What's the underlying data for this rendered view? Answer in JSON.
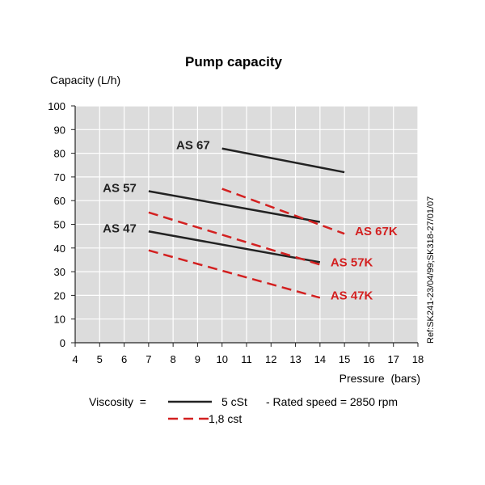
{
  "chart_data": {
    "type": "line",
    "title": "Pump capacity",
    "ylabel": "Capacity (L/h)",
    "xlabel": "Pressure  (bars)",
    "xlim": [
      4,
      18
    ],
    "ylim": [
      0,
      100
    ],
    "x_ticks": [
      4,
      5,
      6,
      7,
      8,
      9,
      10,
      11,
      12,
      13,
      14,
      15,
      16,
      17,
      18
    ],
    "y_ticks": [
      0,
      10,
      20,
      30,
      40,
      50,
      60,
      70,
      80,
      90,
      100
    ],
    "grid": true,
    "series": [
      {
        "name": "AS 67",
        "viscosity": "5 cSt",
        "color": "#222222",
        "dashed": false,
        "label_side": "left",
        "x": [
          10,
          15
        ],
        "y": [
          82,
          72
        ]
      },
      {
        "name": "AS 57",
        "viscosity": "5 cSt",
        "color": "#222222",
        "dashed": false,
        "label_side": "left",
        "x": [
          7,
          14
        ],
        "y": [
          64,
          51
        ]
      },
      {
        "name": "AS 47",
        "viscosity": "5 cSt",
        "color": "#222222",
        "dashed": false,
        "label_side": "left",
        "x": [
          7,
          14
        ],
        "y": [
          47,
          34
        ]
      },
      {
        "name": "AS 67K",
        "viscosity": "1,8 cst",
        "color": "#d32020",
        "dashed": true,
        "label_side": "right",
        "x": [
          10,
          15
        ],
        "y": [
          65,
          46
        ]
      },
      {
        "name": "AS 57K",
        "viscosity": "1,8 cst",
        "color": "#d32020",
        "dashed": true,
        "label_side": "right",
        "x": [
          7,
          14
        ],
        "y": [
          55,
          33
        ]
      },
      {
        "name": "AS 47K",
        "viscosity": "1,8 cst",
        "color": "#d32020",
        "dashed": true,
        "label_side": "right",
        "x": [
          7,
          14
        ],
        "y": [
          39,
          19
        ]
      }
    ],
    "reference": "Ref:SK241-23/04/99;SK318-27/01/07",
    "legend": {
      "prefix": "Viscosity  =",
      "entries": [
        {
          "label": "5 cSt",
          "color": "#222222",
          "dashed": false
        },
        {
          "label": "1,8 cst",
          "color": "#d32020",
          "dashed": true
        }
      ],
      "note": "- Rated speed = 2850 rpm"
    }
  }
}
